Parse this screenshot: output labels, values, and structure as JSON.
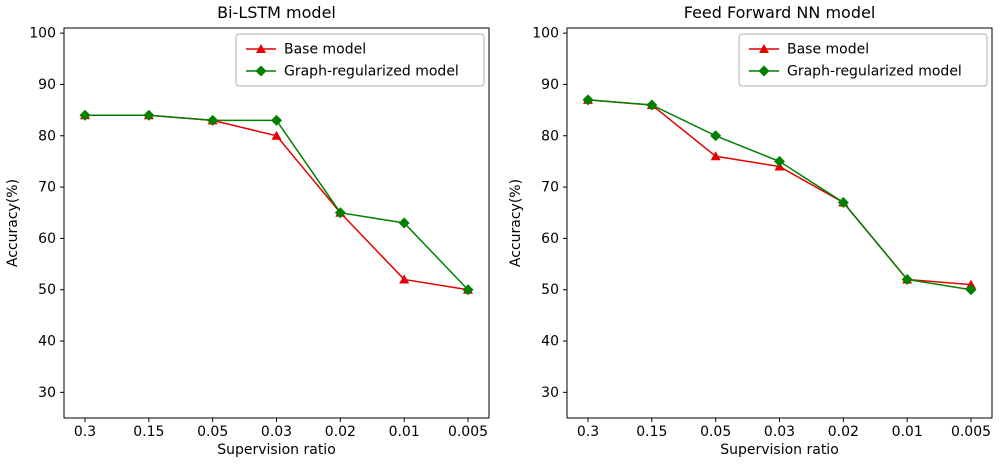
{
  "figure": {
    "background": "#ffffff",
    "spine_color": "#000000",
    "legend_edge_color": "#b0b0b0"
  },
  "chart_data": [
    {
      "type": "line",
      "title": "Bi-LSTM model",
      "xlabel": "Supervision ratio",
      "ylabel": "Accuracy(%)",
      "categories": [
        "0.3",
        "0.15",
        "0.05",
        "0.03",
        "0.02",
        "0.01",
        "0.005"
      ],
      "yticks": [
        30,
        40,
        50,
        60,
        70,
        80,
        90,
        100
      ],
      "ylim": [
        25,
        101
      ],
      "grid": false,
      "legend_position": "upper right",
      "series": [
        {
          "name": "Base model",
          "color": "#e50000",
          "marker": "triangle",
          "values": [
            84,
            84,
            83,
            80,
            65,
            52,
            50
          ]
        },
        {
          "name": "Graph-regularized model",
          "color": "#008000",
          "marker": "diamond",
          "values": [
            84,
            84,
            83,
            83,
            65,
            63,
            50
          ]
        }
      ]
    },
    {
      "type": "line",
      "title": "Feed Forward NN model",
      "xlabel": "Supervision ratio",
      "ylabel": "Accuracy(%)",
      "categories": [
        "0.3",
        "0.15",
        "0.05",
        "0.03",
        "0.02",
        "0.01",
        "0.005"
      ],
      "yticks": [
        30,
        40,
        50,
        60,
        70,
        80,
        90,
        100
      ],
      "ylim": [
        25,
        101
      ],
      "grid": false,
      "legend_position": "upper right",
      "series": [
        {
          "name": "Base model",
          "color": "#e50000",
          "marker": "triangle",
          "values": [
            87,
            86,
            76,
            74,
            67,
            52,
            51
          ]
        },
        {
          "name": "Graph-regularized model",
          "color": "#008000",
          "marker": "diamond",
          "values": [
            87,
            86,
            80,
            75,
            67,
            52,
            50
          ]
        }
      ]
    }
  ]
}
